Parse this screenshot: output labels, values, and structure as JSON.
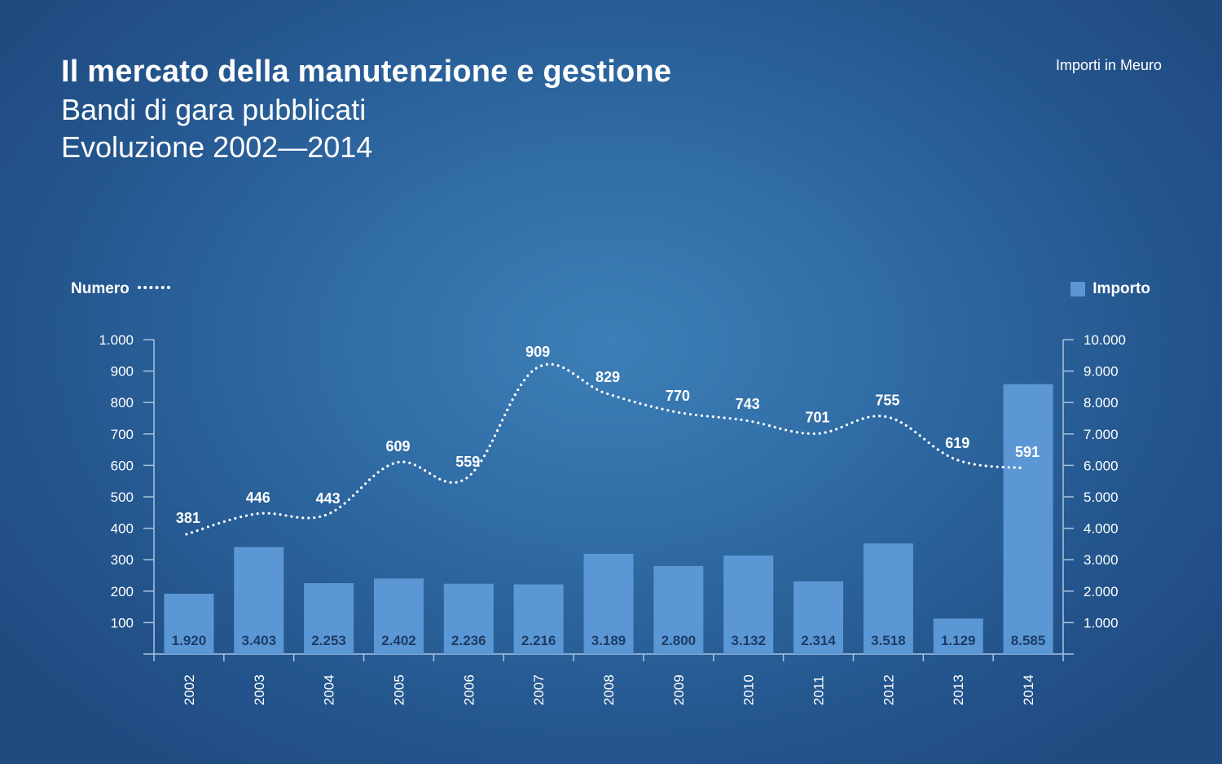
{
  "header": {
    "title": "Il mercato della manutenzione e gestione",
    "subtitle_line1": "Bandi di gara pubblicati",
    "subtitle_line2": "Evoluzione 2002—2014",
    "units": "Importi in Meuro"
  },
  "legend": {
    "left_label": "Numero",
    "right_label": "Importo"
  },
  "colors": {
    "bar": "#5b97d5",
    "bar_label": "#1d3c66",
    "line": "#ffffff",
    "axis": "#a9c4e3"
  },
  "chart_data": {
    "type": "bar",
    "categories": [
      "2002",
      "2003",
      "2004",
      "2005",
      "2006",
      "2007",
      "2008",
      "2009",
      "2010",
      "2011",
      "2012",
      "2013",
      "2014"
    ],
    "series": [
      {
        "name": "Importo",
        "type": "bar",
        "axis": "right",
        "values": [
          1920,
          3403,
          2253,
          2402,
          2236,
          2216,
          3189,
          2800,
          3132,
          2314,
          3518,
          1129,
          8585
        ],
        "labels": [
          "1.920",
          "3.403",
          "2.253",
          "2.402",
          "2.236",
          "2.216",
          "3.189",
          "2.800",
          "3.132",
          "2.314",
          "3.518",
          "1.129",
          "8.585"
        ]
      },
      {
        "name": "Numero",
        "type": "line",
        "style": "dotted",
        "axis": "left",
        "values": [
          381,
          446,
          443,
          609,
          559,
          909,
          829,
          770,
          743,
          701,
          755,
          619,
          591
        ],
        "labels": [
          "381",
          "446",
          "443",
          "609",
          "559",
          "909",
          "829",
          "770",
          "743",
          "701",
          "755",
          "619",
          "591"
        ]
      }
    ],
    "y_left": {
      "range": [
        0,
        1000
      ],
      "ticks": [
        100,
        200,
        300,
        400,
        500,
        600,
        700,
        800,
        900,
        1000
      ],
      "tick_labels": [
        "100",
        "200",
        "300",
        "400",
        "500",
        "600",
        "700",
        "800",
        "900",
        "1.000"
      ]
    },
    "y_right": {
      "range": [
        0,
        10000
      ],
      "ticks": [
        1000,
        2000,
        3000,
        4000,
        5000,
        6000,
        7000,
        8000,
        9000,
        10000
      ],
      "tick_labels": [
        "1.000",
        "2.000",
        "3.000",
        "4.000",
        "5.000",
        "6.000",
        "7.000",
        "8.000",
        "9.000",
        "10.000"
      ]
    },
    "grid": false,
    "legend_placement": "top-left and top-right"
  }
}
